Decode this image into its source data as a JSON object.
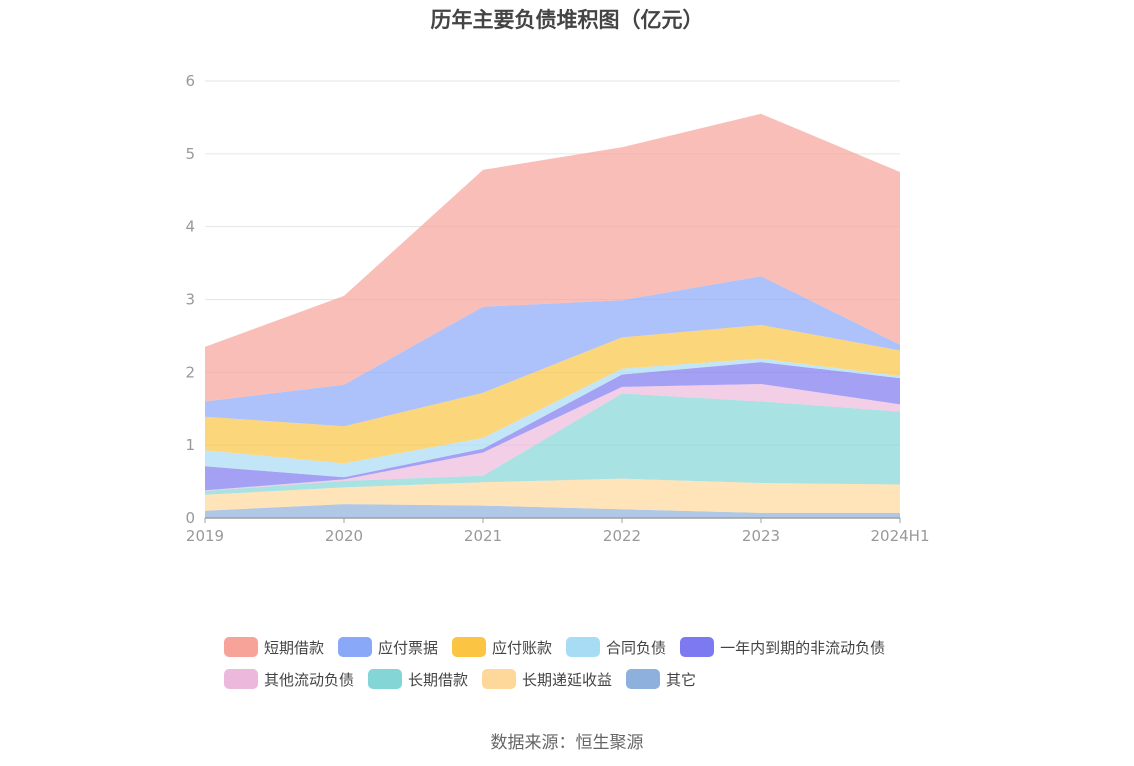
{
  "chart_data": {
    "type": "area",
    "stacked": true,
    "title": "历年主要负债堆积图（亿元）",
    "xlabel": "",
    "ylabel": "",
    "categories": [
      "2019",
      "2020",
      "2021",
      "2022",
      "2023",
      "2024H1"
    ],
    "ylim": [
      0,
      6
    ],
    "yticks": [
      0,
      1,
      2,
      3,
      4,
      5,
      6
    ],
    "grid": true,
    "legend_position": "bottom",
    "series": [
      {
        "name": "其它",
        "color": "#8eb0dc",
        "values": [
          0.1,
          0.19,
          0.17,
          0.12,
          0.07,
          0.07
        ]
      },
      {
        "name": "长期递延收益",
        "color": "#fdd89a",
        "values": [
          0.22,
          0.23,
          0.32,
          0.42,
          0.41,
          0.39
        ]
      },
      {
        "name": "长期借款",
        "color": "#84d6d6",
        "values": [
          0.05,
          0.09,
          0.09,
          1.17,
          1.12,
          1.0
        ]
      },
      {
        "name": "其他流动负债",
        "color": "#ecb9dd",
        "values": [
          0.01,
          0.02,
          0.32,
          0.09,
          0.24,
          0.1
        ]
      },
      {
        "name": "一年内到期的非流动负债",
        "color": "#7d79f0",
        "values": [
          0.33,
          0.03,
          0.05,
          0.17,
          0.3,
          0.36
        ]
      },
      {
        "name": "合同负债",
        "color": "#a8dcf4",
        "values": [
          0.22,
          0.19,
          0.15,
          0.08,
          0.05,
          0.03
        ]
      },
      {
        "name": "应付账款",
        "color": "#fbc443",
        "values": [
          0.46,
          0.51,
          0.62,
          0.43,
          0.46,
          0.35
        ]
      },
      {
        "name": "应付票据",
        "color": "#8aa8f8",
        "values": [
          0.21,
          0.57,
          1.18,
          0.51,
          0.67,
          0.08
        ]
      },
      {
        "name": "短期借款",
        "color": "#f8a39a",
        "values": [
          0.75,
          1.22,
          1.88,
          2.1,
          2.23,
          2.37
        ]
      }
    ]
  },
  "legend": [
    {
      "label": "短期借款",
      "color": "#f8a39a"
    },
    {
      "label": "应付票据",
      "color": "#8aa8f8"
    },
    {
      "label": "应付账款",
      "color": "#fbc443"
    },
    {
      "label": "合同负债",
      "color": "#a8dcf4"
    },
    {
      "label": "一年内到期的非流动负债",
      "color": "#7d79f0"
    },
    {
      "label": "其他流动负债",
      "color": "#ecb9dd"
    },
    {
      "label": "长期借款",
      "color": "#84d6d6"
    },
    {
      "label": "长期递延收益",
      "color": "#fdd89a"
    },
    {
      "label": "其它",
      "color": "#8eb0dc"
    }
  ],
  "source": "数据来源：恒生聚源"
}
